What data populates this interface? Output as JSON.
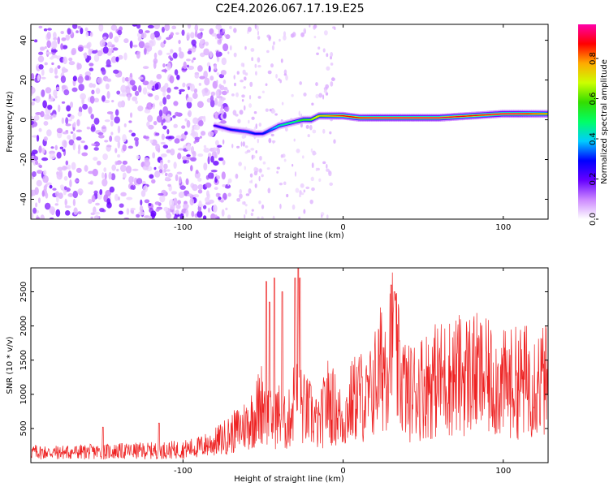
{
  "figure": {
    "title": "C2E4.2026.067.17.19.E25"
  },
  "chart_data": [
    {
      "type": "heatmap",
      "xlabel": "Height of straight line (km)",
      "ylabel": "Frequency (Hz)",
      "xlim": [
        -195,
        128
      ],
      "ylim": [
        -50,
        48
      ],
      "xticks": [
        -100,
        0,
        100
      ],
      "xtick_labels": [
        "-100",
        "0",
        "100"
      ],
      "yticks": [
        -40,
        -20,
        0,
        20,
        40
      ],
      "ytick_labels": [
        "-40",
        "-20",
        "0",
        "20",
        "40"
      ],
      "ridge": {
        "x": [
          -80,
          -70,
          -60,
          -55,
          -50,
          -45,
          -40,
          -35,
          -30,
          -25,
          -20,
          -15,
          -10,
          -5,
          0,
          10,
          20,
          40,
          60,
          80,
          100,
          110,
          128
        ],
        "y": [
          -3,
          -5,
          -6,
          -7,
          -7,
          -5,
          -3,
          -2,
          -1,
          0,
          0,
          2,
          2,
          2,
          2,
          1,
          1,
          1,
          1,
          2,
          3,
          3,
          3
        ],
        "amplitude": [
          0.25,
          0.3,
          0.35,
          0.3,
          0.3,
          0.35,
          0.45,
          0.5,
          0.5,
          0.6,
          0.65,
          0.75,
          0.8,
          0.85,
          0.9,
          0.9,
          0.95,
          0.95,
          0.95,
          0.9,
          0.95,
          0.95,
          0.8
        ]
      },
      "noise_region": {
        "x_from": -195,
        "x_to": -80,
        "amplitude": 0.05
      },
      "colorbar": {
        "label": "Normalized spectral amplitude",
        "range": [
          0,
          0.97
        ],
        "ticks": [
          0.0,
          0.2,
          0.4,
          0.6,
          0.8
        ],
        "tick_labels": [
          "0.0",
          "0.2",
          "0.4",
          "0.6",
          "0.8"
        ],
        "colors": [
          "#ffffff",
          "#cc88ff",
          "#6600ff",
          "#0000ff",
          "#00ccff",
          "#00ff66",
          "#33dd00",
          "#ccff00",
          "#ffaa00",
          "#ff0000",
          "#ff00aa"
        ]
      }
    },
    {
      "type": "line",
      "xlabel": "Height of straight line (km)",
      "ylabel": "SNR (10 * v/v)",
      "xlim": [
        -195,
        128
      ],
      "ylim": [
        0,
        2850
      ],
      "xticks": [
        -100,
        0,
        100
      ],
      "xtick_labels": [
        "-100",
        "0",
        "100"
      ],
      "yticks": [
        500,
        1000,
        1500,
        2000,
        2500
      ],
      "ytick_labels": [
        "500",
        "1000",
        "1500",
        "2000",
        "2500"
      ],
      "color": "#ee2222",
      "series": [
        {
          "x": [
            -195,
            -180,
            -160,
            -140,
            -120,
            -100,
            -90,
            -80,
            -70,
            -60,
            -55,
            -50,
            -45,
            -40,
            -35,
            -30,
            -25,
            -20,
            -15,
            -10,
            -5,
            0,
            5,
            10,
            15,
            20,
            25,
            30,
            35,
            40,
            50,
            60,
            70,
            80,
            90,
            100,
            110,
            120,
            128
          ],
          "values": [
            180,
            170,
            180,
            190,
            200,
            220,
            260,
            340,
            480,
            650,
            800,
            1050,
            700,
            800,
            600,
            1100,
            900,
            800,
            600,
            1050,
            900,
            700,
            1000,
            1150,
            1000,
            1350,
            1650,
            2050,
            1500,
            1150,
            1300,
            1400,
            1450,
            1500,
            1400,
            1300,
            1350,
            1400,
            1350
          ]
        }
      ],
      "spikes": {
        "x": [
          -150,
          -115,
          -48,
          -46,
          -43,
          -38,
          -30,
          -28,
          -27,
          30,
          32
        ],
        "values": [
          520,
          580,
          2650,
          2350,
          2700,
          2500,
          2700,
          2850,
          2700,
          2600,
          2500
        ]
      }
    }
  ]
}
